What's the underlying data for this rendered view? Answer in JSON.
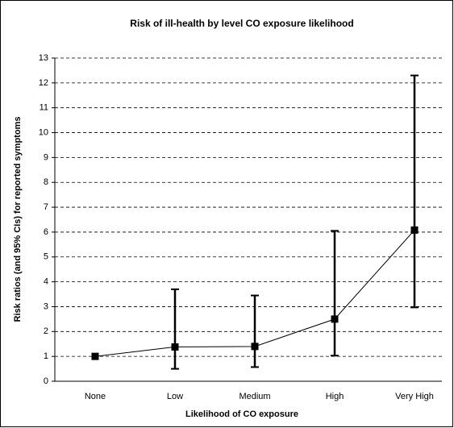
{
  "chart_data": {
    "type": "line",
    "title": "Risk of ill-health by level CO exposure likelihood",
    "x_label": "Likelihood of CO exposure",
    "y_label": "Risk ratios (and 95% CIs) for reported symptoms",
    "categories": [
      "None",
      "Low",
      "Medium",
      "High",
      "Very High"
    ],
    "series": [
      {
        "name": "Risk ratio",
        "color": "#000000",
        "values": [
          1,
          1.38,
          1.4,
          2.5,
          6.08
        ],
        "lower": [
          null,
          0.5,
          0.57,
          1.03,
          2.97
        ],
        "upper": [
          null,
          3.7,
          3.45,
          6.05,
          12.3
        ]
      }
    ],
    "ylim": [
      0,
      13
    ],
    "yticks": [
      0,
      1,
      2,
      3,
      4,
      5,
      6,
      7,
      8,
      9,
      10,
      11,
      12,
      13
    ],
    "grid": true
  }
}
